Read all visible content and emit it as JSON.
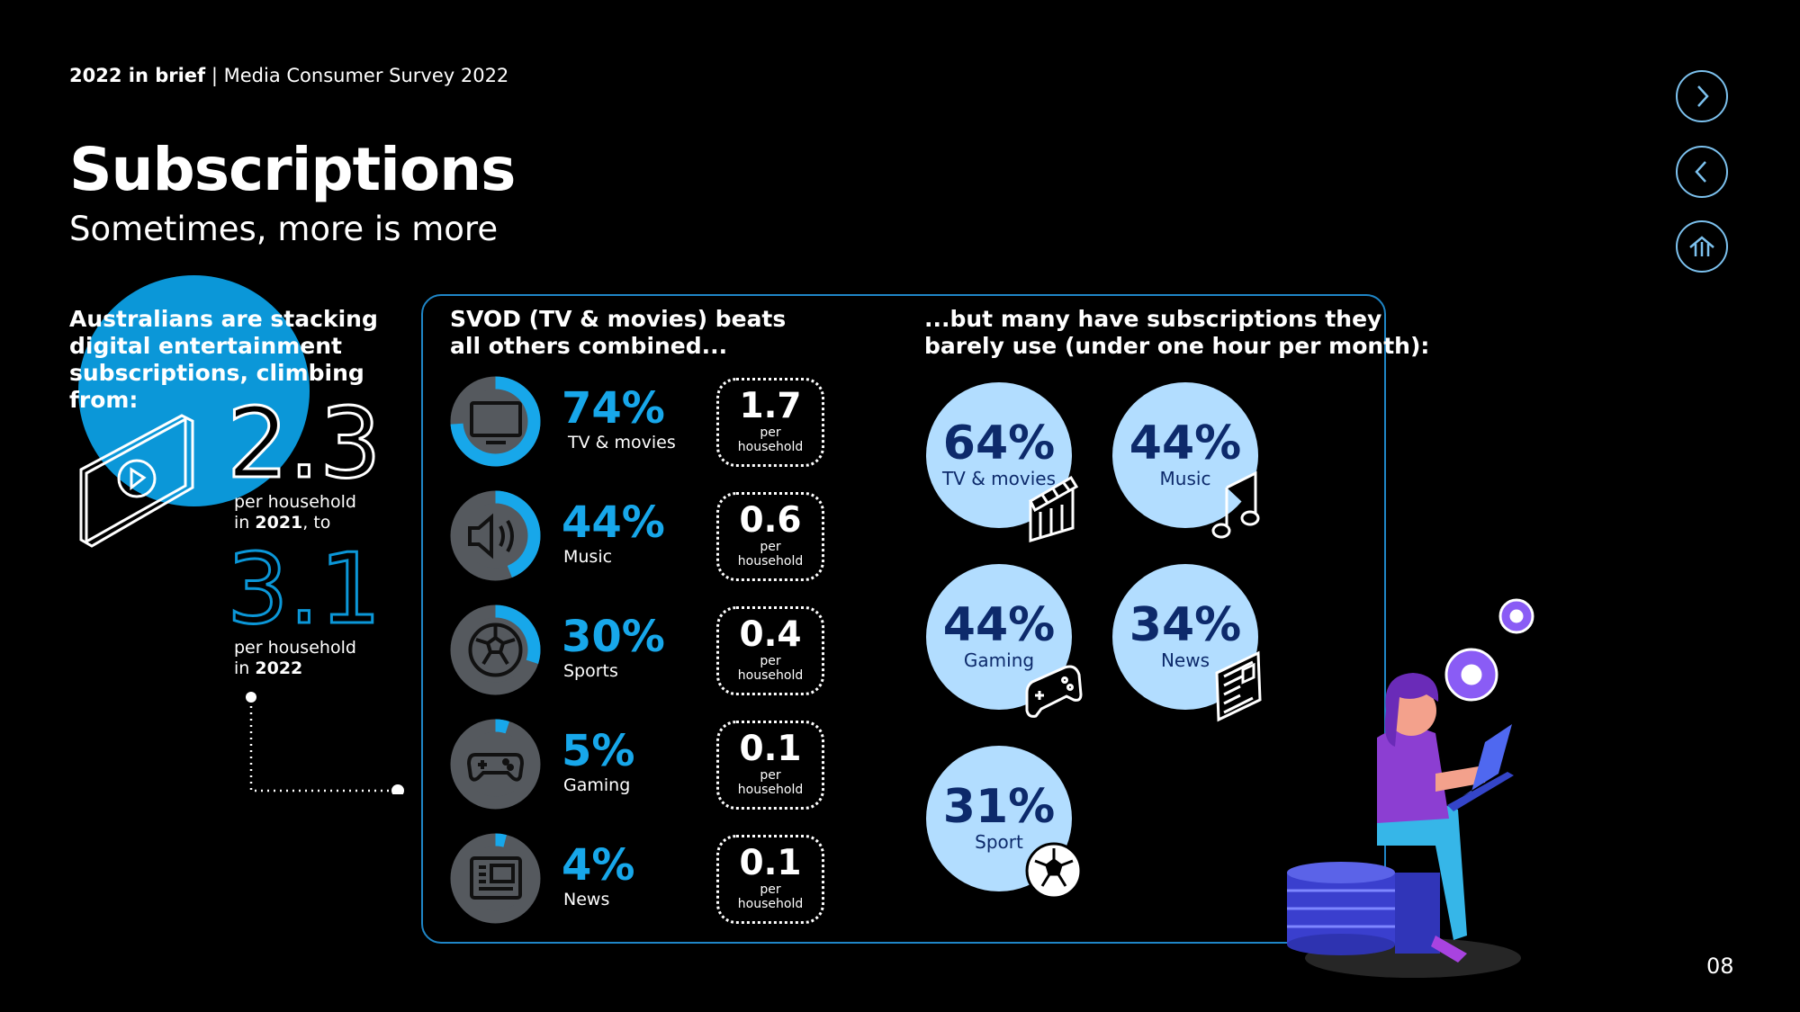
{
  "header": {
    "section": "2022 in brief",
    "separator": " | ",
    "publication": "Media Consumer Survey 2022",
    "title": "Subscriptions",
    "subtitle": "Sometimes, more is more"
  },
  "nav": {
    "next_icon": "chevron-right-icon",
    "prev_icon": "chevron-left-icon",
    "home_icon": "home-icon",
    "accent": "#7cc1ee"
  },
  "left": {
    "intro": "Australians are stacking digital entertainment subscriptions, climbing from:",
    "value_2021": "2.3",
    "caption_2021_a": "per household",
    "caption_2021_b_pre": "in ",
    "caption_2021_b_year": "2021",
    "caption_2021_b_post": ", to",
    "value_2022": "3.1",
    "caption_2022_a": "per household",
    "caption_2022_b_pre": "in ",
    "caption_2022_b_year": "2022"
  },
  "svod": {
    "heading_line1": "SVOD (TV & movies) beats",
    "heading_line2": "all others combined...",
    "rows": [
      {
        "pct": "74%",
        "fraction": 0.74,
        "label": "TV & movies",
        "per": "1.7",
        "per_label_1": "per",
        "per_label_2": "household",
        "icon": "tv-icon"
      },
      {
        "pct": "44%",
        "fraction": 0.44,
        "label": "Music",
        "per": "0.6",
        "per_label_1": "per",
        "per_label_2": "household",
        "icon": "speaker-icon"
      },
      {
        "pct": "30%",
        "fraction": 0.3,
        "label": "Sports",
        "per": "0.4",
        "per_label_1": "per",
        "per_label_2": "household",
        "icon": "soccer-ball-icon"
      },
      {
        "pct": "5%",
        "fraction": 0.05,
        "label": "Gaming",
        "per": "0.1",
        "per_label_1": "per",
        "per_label_2": "household",
        "icon": "gamepad-icon"
      },
      {
        "pct": "4%",
        "fraction": 0.04,
        "label": "News",
        "per": "0.1",
        "per_label_1": "per",
        "per_label_2": "household",
        "icon": "newspaper-icon"
      }
    ]
  },
  "underused": {
    "heading_line1": "...but many have subscriptions they",
    "heading_line2": "barely use (under one hour per month):",
    "bubbles": [
      {
        "pct": "64%",
        "label": "TV & movies",
        "icon": "clapperboard-icon"
      },
      {
        "pct": "44%",
        "label": "Music",
        "icon": "music-note-icon"
      },
      {
        "pct": "44%",
        "label": "Gaming",
        "icon": "gamepad-icon"
      },
      {
        "pct": "34%",
        "label": "News",
        "icon": "newspaper-icon"
      },
      {
        "pct": "31%",
        "label": "Sport",
        "icon": "soccer-ball-icon"
      }
    ]
  },
  "colors": {
    "accent_blue": "#17a7ea",
    "circle_blue": "#0b97d8",
    "bubble": "#b2ddff",
    "donut_track": "#55595e",
    "panel_border": "#1f86c7"
  },
  "page_number": "08"
}
